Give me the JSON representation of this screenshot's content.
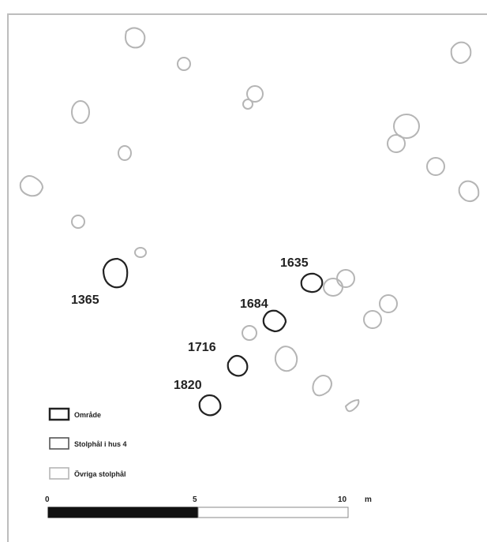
{
  "features": {
    "labels": [
      {
        "id": "1635",
        "text": "1635"
      },
      {
        "id": "1684",
        "text": "1684"
      },
      {
        "id": "1716",
        "text": "1716"
      },
      {
        "id": "1820",
        "text": "1820"
      },
      {
        "id": "1365",
        "text": "1365"
      }
    ]
  },
  "legend": {
    "items": [
      {
        "label": "Område",
        "style": "area"
      },
      {
        "label": "Stolphål i hus 4",
        "style": "house4"
      },
      {
        "label": "Övriga stolphål",
        "style": "other"
      }
    ]
  },
  "scalebar": {
    "ticks": [
      "0",
      "5",
      "10"
    ],
    "unit": "m"
  },
  "colors": {
    "area": "#222222",
    "house4": "#555555",
    "other": "#b5b5b5"
  }
}
